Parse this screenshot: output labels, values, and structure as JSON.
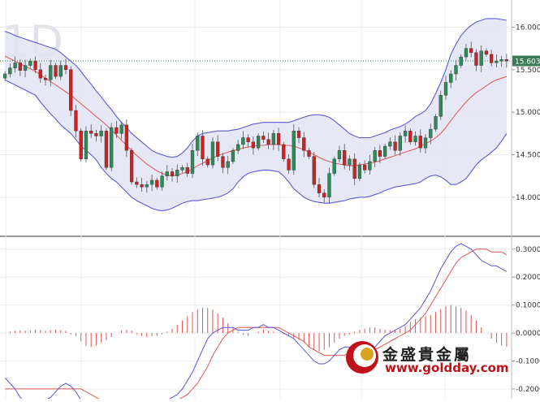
{
  "chart_data": [
    {
      "type": "candlestick",
      "panel": "price",
      "watermark": "1D",
      "ylim": [
        13.55,
        16.3
      ],
      "y_ticks": [
        "16.000",
        "15.500",
        "15.000",
        "14.500",
        "14.000"
      ],
      "y_tick_values": [
        16.0,
        15.5,
        15.0,
        14.5,
        14.0
      ],
      "last_price": "15.603",
      "last_price_value": 15.603,
      "colors": {
        "up": "#2e8b57",
        "down": "#cc2222",
        "band": "#5b5bd6",
        "band_fill": "#e3e4f5",
        "middle": "#e06060",
        "last_price": "#3a7a55"
      },
      "series": [
        {
          "name": "close",
          "values": [
            15.45,
            15.52,
            15.58,
            15.49,
            15.55,
            15.6,
            15.5,
            15.4,
            15.38,
            15.55,
            15.42,
            15.55,
            15.5,
            15.02,
            14.78,
            14.45,
            14.78,
            14.75,
            14.72,
            14.78,
            14.35,
            14.82,
            14.75,
            14.85,
            14.55,
            14.18,
            14.15,
            14.12,
            14.15,
            14.2,
            14.12,
            14.25,
            14.3,
            14.25,
            14.32,
            14.35,
            14.28,
            14.55,
            14.72,
            14.45,
            14.38,
            14.65,
            14.48,
            14.35,
            14.42,
            14.55,
            14.62,
            14.7,
            14.65,
            14.58,
            14.72,
            14.68,
            14.62,
            14.75,
            14.62,
            14.45,
            14.32,
            14.78,
            14.7,
            14.55,
            14.48,
            14.15,
            14.05,
            14.0,
            14.28,
            14.45,
            14.55,
            14.38,
            14.45,
            14.22,
            14.38,
            14.32,
            14.42,
            14.55,
            14.48,
            14.6,
            14.65,
            14.55,
            14.72,
            14.78,
            14.65,
            14.72,
            14.58,
            14.7,
            14.8,
            14.95,
            15.2,
            15.35,
            15.45,
            15.55,
            15.65,
            15.75,
            15.7,
            15.55,
            15.72,
            15.68,
            15.58,
            15.6,
            15.62,
            15.6
          ]
        },
        {
          "name": "bb_upper",
          "values": [
            15.95,
            15.93,
            15.9,
            15.88,
            15.86,
            15.84,
            15.82,
            15.8,
            15.78,
            15.76,
            15.74,
            15.7,
            15.65,
            15.6,
            15.55,
            15.48,
            15.4,
            15.33,
            15.25,
            15.18,
            15.1,
            15.03,
            14.95,
            14.88,
            14.82,
            14.75,
            14.7,
            14.65,
            14.6,
            14.55,
            14.52,
            14.5,
            14.48,
            14.47,
            14.48,
            14.52,
            14.58,
            14.66,
            14.72,
            14.75,
            14.76,
            14.77,
            14.78,
            14.78,
            14.78,
            14.79,
            14.8,
            14.82,
            14.84,
            14.86,
            14.87,
            14.88,
            14.88,
            14.88,
            14.88,
            14.88,
            14.88,
            14.9,
            14.92,
            14.94,
            14.96,
            14.97,
            14.97,
            14.96,
            14.94,
            14.9,
            14.85,
            14.8,
            14.75,
            14.72,
            14.7,
            14.7,
            14.7,
            14.72,
            14.74,
            14.76,
            14.79,
            14.81,
            14.83,
            14.86,
            14.9,
            14.95,
            14.98,
            15.02,
            15.1,
            15.22,
            15.35,
            15.5,
            15.68,
            15.8,
            15.9,
            15.97,
            16.02,
            16.06,
            16.08,
            16.1,
            16.1,
            16.1,
            16.09,
            16.08
          ]
        },
        {
          "name": "bb_middle",
          "values": [
            15.66,
            15.63,
            15.6,
            15.57,
            15.54,
            15.51,
            15.48,
            15.44,
            15.4,
            15.36,
            15.32,
            15.28,
            15.24,
            15.2,
            15.15,
            15.1,
            15.05,
            15.0,
            14.95,
            14.9,
            14.85,
            14.79,
            14.73,
            14.67,
            14.61,
            14.55,
            14.49,
            14.44,
            14.39,
            14.35,
            14.31,
            14.28,
            14.26,
            14.25,
            14.26,
            14.28,
            14.3,
            14.33,
            14.37,
            14.4,
            14.43,
            14.46,
            14.49,
            14.51,
            14.53,
            14.55,
            14.56,
            14.58,
            14.59,
            14.6,
            14.61,
            14.61,
            14.62,
            14.62,
            14.62,
            14.61,
            14.61,
            14.6,
            14.58,
            14.56,
            14.53,
            14.5,
            14.47,
            14.44,
            14.42,
            14.4,
            14.39,
            14.38,
            14.37,
            14.37,
            14.38,
            14.39,
            14.4,
            14.41,
            14.43,
            14.45,
            14.47,
            14.49,
            14.51,
            14.53,
            14.55,
            14.57,
            14.6,
            14.63,
            14.66,
            14.7,
            14.75,
            14.82,
            14.9,
            14.98,
            15.05,
            15.12,
            15.18,
            15.23,
            15.27,
            15.31,
            15.35,
            15.38,
            15.4,
            15.42
          ]
        },
        {
          "name": "bb_lower",
          "values": [
            15.38,
            15.35,
            15.32,
            15.29,
            15.26,
            15.23,
            15.2,
            15.12,
            15.05,
            14.98,
            14.92,
            14.85,
            14.8,
            14.75,
            14.68,
            14.6,
            14.55,
            14.5,
            14.44,
            14.35,
            14.28,
            14.22,
            14.18,
            14.12,
            14.06,
            14.0,
            13.96,
            13.93,
            13.9,
            13.87,
            13.85,
            13.84,
            13.85,
            13.87,
            13.9,
            13.93,
            13.95,
            13.96,
            13.96,
            13.97,
            13.98,
            13.99,
            14.0,
            14.02,
            14.05,
            14.1,
            14.18,
            14.24,
            14.28,
            14.3,
            14.31,
            14.32,
            14.32,
            14.31,
            14.3,
            14.25,
            14.18,
            14.1,
            14.05,
            14.0,
            13.97,
            13.95,
            13.94,
            13.93,
            13.93,
            13.94,
            13.95,
            13.96,
            13.98,
            13.99,
            14.0,
            14.0,
            14.01,
            14.03,
            14.05,
            14.08,
            14.1,
            14.12,
            14.13,
            14.14,
            14.15,
            14.16,
            14.18,
            14.22,
            14.25,
            14.26,
            14.24,
            14.2,
            14.15,
            14.15,
            14.18,
            14.22,
            14.3,
            14.38,
            14.44,
            14.48,
            14.53,
            14.58,
            14.66,
            14.75
          ]
        }
      ]
    },
    {
      "type": "macd",
      "panel": "indicator",
      "ylim": [
        -0.235,
        0.34
      ],
      "y_ticks": [
        "0.3000",
        "0.2000",
        "0.1000",
        "0.0000",
        "-0.1000",
        "-0.2000"
      ],
      "y_tick_values": [
        0.3,
        0.2,
        0.1,
        0.0,
        -0.1,
        -0.2
      ],
      "colors": {
        "macd": "#5555dd",
        "signal": "#e05555",
        "hist": "#e05555"
      },
      "series": [
        {
          "name": "macd",
          "values": [
            -0.16,
            -0.18,
            -0.2,
            -0.23,
            -0.25,
            -0.26,
            -0.26,
            -0.25,
            -0.24,
            -0.23,
            -0.21,
            -0.19,
            -0.18,
            -0.19,
            -0.21,
            -0.24,
            -0.26,
            -0.27,
            -0.27,
            -0.27,
            -0.27,
            -0.27,
            -0.26,
            -0.25,
            -0.25,
            -0.25,
            -0.25,
            -0.26,
            -0.26,
            -0.26,
            -0.26,
            -0.25,
            -0.24,
            -0.23,
            -0.22,
            -0.2,
            -0.17,
            -0.14,
            -0.1,
            -0.06,
            -0.02,
            0.0,
            0.01,
            0.02,
            0.02,
            0.02,
            0.01,
            0.01,
            0.01,
            0.02,
            0.02,
            0.03,
            0.02,
            0.02,
            0.01,
            0.0,
            -0.01,
            -0.02,
            -0.04,
            -0.06,
            -0.08,
            -0.1,
            -0.11,
            -0.11,
            -0.1,
            -0.08,
            -0.06,
            -0.05,
            -0.05,
            -0.06,
            -0.07,
            -0.07,
            -0.06,
            -0.05,
            -0.03,
            -0.01,
            0.0,
            0.01,
            0.02,
            0.03,
            0.05,
            0.07,
            0.09,
            0.12,
            0.15,
            0.19,
            0.23,
            0.26,
            0.29,
            0.31,
            0.32,
            0.31,
            0.3,
            0.28,
            0.26,
            0.25,
            0.24,
            0.24,
            0.23,
            0.22
          ]
        },
        {
          "name": "signal",
          "values": [
            -0.2,
            -0.2,
            -0.2,
            -0.2,
            -0.2,
            -0.2,
            -0.2,
            -0.2,
            -0.2,
            -0.2,
            -0.2,
            -0.2,
            -0.2,
            -0.2,
            -0.2,
            -0.2,
            -0.21,
            -0.22,
            -0.23,
            -0.24,
            -0.25,
            -0.25,
            -0.26,
            -0.26,
            -0.26,
            -0.26,
            -0.26,
            -0.26,
            -0.26,
            -0.26,
            -0.26,
            -0.26,
            -0.25,
            -0.25,
            -0.24,
            -0.23,
            -0.22,
            -0.2,
            -0.18,
            -0.15,
            -0.12,
            -0.08,
            -0.05,
            -0.02,
            0.0,
            0.01,
            0.02,
            0.02,
            0.02,
            0.02,
            0.02,
            0.02,
            0.02,
            0.02,
            0.02,
            0.01,
            0.0,
            -0.01,
            -0.02,
            -0.03,
            -0.05,
            -0.06,
            -0.07,
            -0.08,
            -0.08,
            -0.08,
            -0.08,
            -0.08,
            -0.07,
            -0.07,
            -0.07,
            -0.07,
            -0.06,
            -0.06,
            -0.05,
            -0.04,
            -0.03,
            -0.02,
            -0.01,
            0.0,
            0.01,
            0.03,
            0.05,
            0.07,
            0.1,
            0.13,
            0.16,
            0.19,
            0.22,
            0.25,
            0.27,
            0.28,
            0.29,
            0.3,
            0.3,
            0.3,
            0.29,
            0.29,
            0.29,
            0.28
          ]
        },
        {
          "name": "histogram",
          "values": [
            0.0,
            0.005,
            0.008,
            0.01,
            0.008,
            0.01,
            0.012,
            0.01,
            0.008,
            0.01,
            0.012,
            0.01,
            0.008,
            -0.005,
            -0.01,
            -0.03,
            -0.045,
            -0.05,
            -0.045,
            -0.035,
            -0.025,
            -0.015,
            0.0,
            0.01,
            0.012,
            0.008,
            -0.005,
            -0.01,
            -0.015,
            -0.012,
            -0.01,
            -0.005,
            0.005,
            0.015,
            0.03,
            0.045,
            0.06,
            0.075,
            0.085,
            0.09,
            0.09,
            0.085,
            0.07,
            0.055,
            0.035,
            0.02,
            0.005,
            -0.005,
            -0.01,
            0.0,
            0.005,
            0.012,
            0.008,
            0.005,
            0.0,
            -0.005,
            -0.012,
            -0.02,
            -0.025,
            -0.035,
            -0.05,
            -0.06,
            -0.065,
            -0.06,
            -0.05,
            -0.035,
            -0.02,
            -0.01,
            -0.005,
            0.005,
            0.012,
            0.015,
            0.02,
            0.02,
            0.015,
            0.012,
            0.01,
            0.012,
            0.015,
            0.025,
            0.04,
            0.05,
            0.055,
            0.06,
            0.065,
            0.075,
            0.085,
            0.095,
            0.1,
            0.095,
            0.09,
            0.08,
            0.065,
            0.045,
            0.02,
            0.0,
            -0.02,
            -0.035,
            -0.045,
            -0.05
          ]
        }
      ]
    }
  ],
  "logo": {
    "name_cn": "金盛貴金屬",
    "url": "www.goldday.com"
  }
}
